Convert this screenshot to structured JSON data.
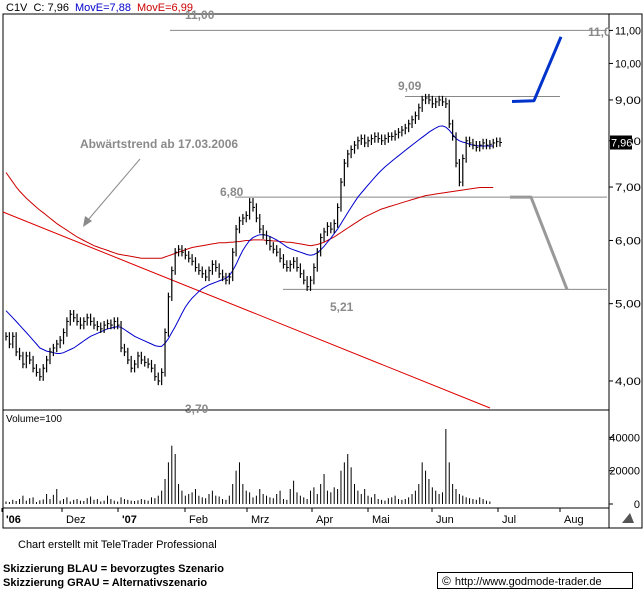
{
  "header": {
    "symbol": "C1V",
    "close_label": "C: 7,96",
    "ma_fast_label": "MovE=7,88",
    "ma_slow_label": "MovE=6,99"
  },
  "colors": {
    "price": "#000000",
    "ma_fast": "#0000cc",
    "ma_slow": "#cc0000",
    "trend": "#dd0000",
    "preferred": "#0033cc",
    "alternative": "#999999",
    "level": "#888888",
    "annotation": "#8a8a8a"
  },
  "chart_data": [
    {
      "type": "candlestick",
      "x_ticks": [
        "'06",
        "Dez",
        "'07",
        "Feb",
        "Mrz",
        "Apr",
        "Mai",
        "Jun",
        "Jul",
        "Aug"
      ],
      "y_ticks": [
        "4,00",
        "5,00",
        "6,00",
        "7,00",
        "8,00",
        "9,00",
        "10,00",
        "11,00"
      ],
      "y_scale": "log",
      "ylim": [
        3.7,
        11.6
      ],
      "last_value_label": "7,96",
      "levels": [
        {
          "label": "11,00",
          "value": 11.0
        },
        {
          "label": "9,09",
          "value": 9.09
        },
        {
          "label": "6,80",
          "value": 6.8
        },
        {
          "label": "5,21",
          "value": 5.21
        },
        {
          "label": "3,70",
          "value": 3.7
        }
      ],
      "annotation": "Abwärtstrend ab 17.03.2006",
      "scenario_blue": [
        8.96,
        8.98,
        10.8
      ],
      "scenario_gray": [
        6.8,
        6.8,
        5.21
      ],
      "price": [
        4.55,
        4.45,
        4.55,
        4.35,
        4.3,
        4.2,
        4.3,
        4.25,
        4.15,
        4.1,
        4.05,
        4.15,
        4.25,
        4.35,
        4.4,
        4.45,
        4.5,
        4.6,
        4.75,
        4.85,
        4.8,
        4.75,
        4.7,
        4.75,
        4.8,
        4.75,
        4.7,
        4.68,
        4.65,
        4.7,
        4.72,
        4.7,
        4.75,
        4.7,
        4.4,
        4.35,
        4.25,
        4.15,
        4.2,
        4.3,
        4.25,
        4.22,
        4.2,
        4.15,
        4.05,
        4.0,
        4.1,
        4.6,
        5.1,
        5.5,
        5.8,
        5.85,
        5.8,
        5.75,
        5.7,
        5.65,
        5.55,
        5.5,
        5.45,
        5.4,
        5.5,
        5.6,
        5.55,
        5.45,
        5.4,
        5.35,
        5.4,
        5.8,
        6.2,
        6.35,
        6.4,
        6.45,
        6.7,
        6.6,
        6.4,
        6.2,
        6.1,
        6.0,
        5.9,
        5.85,
        5.8,
        5.7,
        5.6,
        5.55,
        5.6,
        5.65,
        5.55,
        5.45,
        5.35,
        5.25,
        5.35,
        5.55,
        5.8,
        6.05,
        6.15,
        6.25,
        6.2,
        6.3,
        6.6,
        7.1,
        7.5,
        7.7,
        7.8,
        7.9,
        8.0,
        8.05,
        7.95,
        8.0,
        8.05,
        8.1,
        8.05,
        8.0,
        8.05,
        8.1,
        8.1,
        8.15,
        8.2,
        8.25,
        8.3,
        8.4,
        8.5,
        8.6,
        8.8,
        9.0,
        9.05,
        9.0,
        8.9,
        8.95,
        9.0,
        8.95,
        8.9,
        8.4,
        8.1,
        7.5,
        7.1,
        7.6,
        8.0,
        7.95,
        7.9,
        7.85,
        7.9,
        7.95,
        7.9,
        7.92,
        7.95,
        7.98,
        7.96
      ],
      "ma_fast": [
        4.9,
        4.85,
        4.8,
        4.75,
        4.7,
        4.65,
        4.6,
        4.55,
        4.5,
        4.45,
        4.4,
        4.38,
        4.36,
        4.35,
        4.34,
        4.33,
        4.33,
        4.34,
        4.36,
        4.38,
        4.4,
        4.43,
        4.46,
        4.49,
        4.52,
        4.55,
        4.57,
        4.59,
        4.61,
        4.63,
        4.65,
        4.66,
        4.67,
        4.68,
        4.67,
        4.64,
        4.61,
        4.58,
        4.55,
        4.53,
        4.51,
        4.49,
        4.47,
        4.45,
        4.43,
        4.42,
        4.42,
        4.46,
        4.52,
        4.6,
        4.68,
        4.77,
        4.86,
        4.95,
        5.02,
        5.08,
        5.13,
        5.18,
        5.22,
        5.25,
        5.28,
        5.3,
        5.32,
        5.34,
        5.36,
        5.38,
        5.42,
        5.5,
        5.6,
        5.72,
        5.83,
        5.92,
        6.0,
        6.05,
        6.08,
        6.1,
        6.1,
        6.09,
        6.07,
        6.04,
        6.01,
        5.97,
        5.93,
        5.89,
        5.86,
        5.84,
        5.82,
        5.8,
        5.78,
        5.76,
        5.75,
        5.76,
        5.79,
        5.84,
        5.9,
        5.97,
        6.04,
        6.12,
        6.2,
        6.3,
        6.4,
        6.5,
        6.6,
        6.7,
        6.8,
        6.88,
        6.96,
        7.04,
        7.12,
        7.2,
        7.28,
        7.35,
        7.42,
        7.48,
        7.54,
        7.6,
        7.66,
        7.72,
        7.78,
        7.84,
        7.9,
        7.96,
        8.02,
        8.08,
        8.14,
        8.2,
        8.25,
        8.3,
        8.34,
        8.35,
        8.32,
        8.25,
        8.15,
        8.05,
        8.0,
        7.97,
        7.95,
        7.92,
        7.9,
        7.89,
        7.88,
        7.88,
        7.88,
        7.88,
        7.88
      ],
      "ma_slow": [
        7.3,
        7.2,
        7.1,
        7.0,
        6.92,
        6.85,
        6.78,
        6.72,
        6.66,
        6.6,
        6.55,
        6.5,
        6.45,
        6.4,
        6.35,
        6.3,
        6.26,
        6.22,
        6.18,
        6.14,
        6.1,
        6.06,
        6.03,
        6.0,
        5.97,
        5.94,
        5.91,
        5.89,
        5.87,
        5.85,
        5.83,
        5.81,
        5.79,
        5.77,
        5.76,
        5.75,
        5.74,
        5.73,
        5.72,
        5.71,
        5.7,
        5.7,
        5.7,
        5.7,
        5.7,
        5.7,
        5.7,
        5.72,
        5.74,
        5.76,
        5.78,
        5.8,
        5.82,
        5.84,
        5.86,
        5.88,
        5.89,
        5.9,
        5.91,
        5.92,
        5.93,
        5.94,
        5.95,
        5.96,
        5.96,
        5.96,
        5.97,
        5.97,
        5.98,
        5.98,
        5.99,
        6.0,
        6.0,
        6.01,
        6.01,
        6.01,
        6.01,
        6.0,
        6.0,
        5.99,
        5.99,
        5.98,
        5.98,
        5.97,
        5.97,
        5.96,
        5.95,
        5.94,
        5.93,
        5.92,
        5.91,
        5.92,
        5.93,
        5.95,
        5.97,
        6.0,
        6.03,
        6.06,
        6.1,
        6.14,
        6.18,
        6.22,
        6.26,
        6.3,
        6.34,
        6.38,
        6.42,
        6.45,
        6.48,
        6.51,
        6.54,
        6.57,
        6.59,
        6.61,
        6.63,
        6.65,
        6.67,
        6.69,
        6.71,
        6.73,
        6.75,
        6.77,
        6.79,
        6.81,
        6.83,
        6.84,
        6.85,
        6.86,
        6.87,
        6.88,
        6.89,
        6.9,
        6.91,
        6.92,
        6.93,
        6.94,
        6.95,
        6.96,
        6.97,
        6.98,
        6.99,
        6.99,
        6.99,
        6.99,
        6.99
      ]
    },
    {
      "type": "bar",
      "title": "Volume=100",
      "y_ticks": [
        "40000",
        "20000",
        "0"
      ],
      "ylim": [
        0,
        48000
      ],
      "values": [
        1500,
        1200,
        2500,
        1800,
        3000,
        5000,
        2000,
        3500,
        4000,
        1200,
        2200,
        2800,
        6000,
        3000,
        5500,
        9000,
        2000,
        3000,
        4000,
        1500,
        2500,
        3000,
        2000,
        1800,
        3500,
        4500,
        2500,
        3000,
        1500,
        2000,
        5000,
        3000,
        2000,
        1500,
        4000,
        3000,
        2500,
        2000,
        1800,
        2200,
        3000,
        2500,
        2000,
        4000,
        3500,
        5000,
        8000,
        15000,
        25000,
        35000,
        30000,
        12000,
        8000,
        5000,
        6000,
        7000,
        9000,
        5000,
        4000,
        3500,
        6000,
        8000,
        5000,
        4500,
        3000,
        2500,
        5000,
        12000,
        20000,
        25000,
        12000,
        8000,
        7000,
        4000,
        5000,
        9000,
        6000,
        5000,
        4000,
        3500,
        6000,
        8000,
        3000,
        2500,
        9000,
        14000,
        7000,
        5000,
        4000,
        3000,
        8000,
        10000,
        6000,
        12000,
        18000,
        8000,
        7000,
        10000,
        9000,
        20000,
        25000,
        30000,
        22000,
        12000,
        8000,
        6000,
        9000,
        5000,
        4000,
        6000,
        3000,
        2500,
        2000,
        3500,
        4000,
        5000,
        3000,
        2500,
        3000,
        4000,
        6000,
        8000,
        12000,
        25000,
        20000,
        15000,
        10000,
        8000,
        6000,
        7000,
        45000,
        25000,
        12000,
        9000,
        6000,
        5000,
        4000,
        3500,
        3000,
        2500,
        4000,
        3000,
        2000,
        1500
      ]
    }
  ],
  "footer": {
    "credit": "Chart erstellt mit TeleTrader Professional",
    "legend_blue": "Skizzierung BLAU = bevorzugtes Szenario",
    "legend_gray": "Skizzierung GRAU = Alternativszenario",
    "copyright_symbol": "©",
    "url": "http://www.godmode-trader.de"
  }
}
